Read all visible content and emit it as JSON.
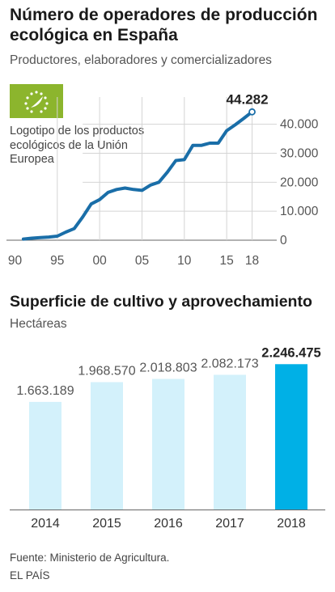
{
  "chart_data": [
    {
      "type": "line",
      "title": "Número de operadores de producción ecológica en España",
      "subtitle": "Productores, elaboradores y comercializadores",
      "x": [
        1991,
        1992,
        1993,
        1994,
        1995,
        1996,
        1997,
        1998,
        1999,
        2000,
        2001,
        2002,
        2003,
        2004,
        2005,
        2006,
        2007,
        2008,
        2009,
        2010,
        2011,
        2012,
        2013,
        2014,
        2015,
        2016,
        2017,
        2018
      ],
      "series": [
        {
          "values": [
            400,
            700,
            900,
            1100,
            1400,
            2800,
            4000,
            8000,
            12500,
            14000,
            16500,
            17500,
            18000,
            17500,
            17200,
            19000,
            20000,
            23500,
            27500,
            27800,
            32700,
            32700,
            33500,
            33500,
            37800,
            39800,
            42000,
            44282
          ]
        }
      ],
      "end_label": "44.282",
      "xlim": [
        1989,
        2019
      ],
      "ylim": [
        0,
        48000
      ],
      "x_ticks": [
        {
          "value": 1990,
          "label": "90"
        },
        {
          "value": 1995,
          "label": "95"
        },
        {
          "value": 2000,
          "label": "00"
        },
        {
          "value": 2005,
          "label": "05"
        },
        {
          "value": 2010,
          "label": "10"
        },
        {
          "value": 2015,
          "label": "15"
        },
        {
          "value": 2018,
          "label": "18"
        }
      ],
      "y_ticks": [
        {
          "value": 0,
          "label": "0"
        },
        {
          "value": 10000,
          "label": "10.000"
        },
        {
          "value": 20000,
          "label": "20.000"
        },
        {
          "value": 30000,
          "label": "30.000"
        },
        {
          "value": 40000,
          "label": "40.000"
        }
      ],
      "logo_caption": "Logotipo de los productos ecológicos de la Unión Europea",
      "colors": {
        "line": "#1a6ea8",
        "grid": "#d4d4d4",
        "logo": "#8cb52d"
      }
    },
    {
      "type": "bar",
      "title": "Superficie de cultivo y aprovechamiento",
      "subtitle": "Hectáreas",
      "categories": [
        "2014",
        "2015",
        "2016",
        "2017",
        "2018"
      ],
      "values": [
        1663189,
        1968570,
        2018803,
        2082173,
        2246475
      ],
      "value_labels": [
        "1.663.189",
        "1.968.570",
        "2.018.803",
        "2.082.173",
        "2.246.475"
      ],
      "ylim": [
        0,
        2900000
      ],
      "highlight": "2018",
      "colors": {
        "bar": "#d3f1fb",
        "highlight": "#00b0e6"
      }
    }
  ],
  "footer": {
    "source": "Fuente: Ministerio de Agricultura.",
    "brand": "EL PAÍS"
  }
}
